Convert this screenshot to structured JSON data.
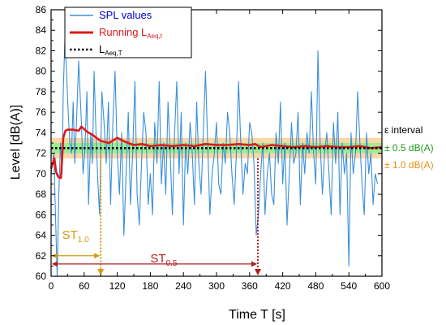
{
  "chart_data": {
    "type": "line",
    "xlabel": "Time T [s]",
    "ylabel": "Level [dB(A)]",
    "xlim": [
      0,
      600
    ],
    "ylim": [
      60,
      86
    ],
    "xticks": [
      0,
      60,
      120,
      180,
      240,
      300,
      360,
      420,
      480,
      540,
      600
    ],
    "yticks": [
      60,
      62,
      64,
      66,
      68,
      70,
      72,
      74,
      76,
      78,
      80,
      82,
      84,
      86
    ],
    "grid": false,
    "legend_position": "top-left",
    "legend": {
      "spl": "SPL values",
      "running_main": "Running L",
      "running_sub": "Aeq,t",
      "laeq_main": "L",
      "laeq_sub": "Aeq,T"
    },
    "colors": {
      "spl": "#3a8fd9",
      "running": "#e01818",
      "laeq": "#000000",
      "band_05": "#8df08d",
      "band_10": "#f7c98a",
      "eps_05_text": "#1f9a1f",
      "eps_10_text": "#e09418",
      "st10": "#d69a12",
      "st05": "#b02020"
    },
    "series": [
      {
        "name": "SPL values",
        "x": [
          0,
          5,
          8,
          11,
          14,
          17,
          20,
          22,
          25,
          28,
          31,
          34,
          37,
          40,
          43,
          46,
          50,
          55,
          58,
          61,
          65,
          68,
          72,
          75,
          78,
          82,
          85,
          88,
          92,
          96,
          100,
          104,
          108,
          112,
          116,
          120,
          124,
          128,
          132,
          136,
          140,
          144,
          148,
          152,
          156,
          160,
          164,
          168,
          172,
          176,
          180,
          184,
          188,
          192,
          196,
          200,
          204,
          208,
          212,
          216,
          220,
          224,
          228,
          232,
          236,
          240,
          244,
          248,
          252,
          256,
          260,
          264,
          268,
          272,
          276,
          280,
          284,
          288,
          292,
          296,
          300,
          304,
          308,
          312,
          316,
          320,
          324,
          328,
          332,
          336,
          340,
          344,
          348,
          352,
          356,
          360,
          364,
          368,
          372,
          376,
          380,
          384,
          388,
          392,
          396,
          400,
          404,
          408,
          412,
          416,
          420,
          424,
          428,
          432,
          436,
          440,
          444,
          448,
          452,
          456,
          460,
          464,
          468,
          472,
          476,
          480,
          484,
          488,
          492,
          496,
          500,
          504,
          508,
          512,
          516,
          520,
          524,
          528,
          532,
          536,
          540,
          544,
          548,
          552,
          556,
          560,
          564,
          568,
          572,
          576,
          580,
          584,
          588,
          592
        ],
        "values": [
          70,
          72,
          66,
          60,
          68,
          73,
          70,
          78,
          83,
          80,
          76,
          73,
          72,
          77,
          71,
          75,
          81,
          75,
          70,
          72,
          78,
          67,
          74,
          71,
          80,
          73,
          69,
          66,
          78,
          75,
          71,
          77,
          67,
          75,
          80,
          72,
          68,
          74,
          64,
          70,
          76,
          67,
          72,
          79,
          68,
          65,
          71,
          76,
          74,
          67,
          70,
          66,
          75,
          71,
          79,
          69,
          73,
          68,
          77,
          72,
          66,
          74,
          79,
          70,
          76,
          65,
          73,
          70,
          75,
          72,
          67,
          77,
          71,
          68,
          74,
          80,
          73,
          66,
          70,
          72,
          75,
          69,
          68,
          73,
          71,
          76,
          74,
          70,
          67,
          72,
          79,
          73,
          68,
          71,
          70,
          75,
          74,
          71,
          64,
          66,
          70,
          73,
          66,
          70,
          72,
          68,
          67,
          74,
          71,
          77,
          69,
          73,
          65,
          70,
          75,
          71,
          72,
          76,
          67,
          73,
          70,
          74,
          72,
          78,
          72,
          69,
          82,
          73,
          68,
          72,
          74,
          70,
          66,
          75,
          71,
          76,
          66,
          73,
          70,
          72,
          61,
          74,
          70,
          72,
          78,
          73,
          69,
          66,
          74,
          70,
          72,
          67,
          70,
          69
        ]
      },
      {
        "name": "Running L Aeq,t",
        "x": [
          0,
          3,
          6,
          9,
          12,
          15,
          18,
          22,
          26,
          30,
          40,
          50,
          55,
          65,
          75,
          90,
          105,
          120,
          135,
          150,
          165,
          180,
          200,
          220,
          240,
          260,
          280,
          300,
          320,
          340,
          360,
          370,
          380,
          400,
          420,
          440,
          460,
          480,
          500,
          520,
          540,
          560,
          580,
          600
        ],
        "values": [
          70.5,
          71.0,
          71.5,
          70.2,
          69.8,
          69.6,
          69.6,
          73.5,
          74.2,
          74.3,
          74.3,
          74.2,
          74.6,
          74.1,
          73.8,
          73.2,
          73.0,
          73.5,
          73.1,
          72.8,
          72.9,
          72.7,
          72.8,
          72.7,
          72.8,
          72.7,
          72.9,
          72.8,
          72.8,
          72.9,
          72.8,
          72.9,
          72.6,
          72.8,
          72.7,
          72.6,
          72.7,
          72.6,
          72.7,
          72.6,
          72.6,
          72.7,
          72.5,
          72.6
        ]
      },
      {
        "name": "L Aeq,T",
        "x": [
          0,
          600
        ],
        "values": [
          72.5,
          72.5
        ]
      }
    ],
    "bands": {
      "center": 72.5,
      "inner_halfwidth": 0.5,
      "outer_halfwidth": 1.0
    },
    "band_labels": {
      "title": "ε interval",
      "inner": "± 0.5 dB(A)",
      "outer": "± 1.0 dB(A)"
    },
    "markers": [
      {
        "label_main": "ST",
        "label_sub": "1.0",
        "x": 90,
        "y_top": 72,
        "y_arrow": 62,
        "key": "st10",
        "label_x": 20,
        "label_y": 63.5
      },
      {
        "label_main": "ST",
        "label_sub": "0.5",
        "x": 375,
        "y_top": 71.5,
        "y_arrow": 61.2,
        "key": "st05",
        "label_x": 180,
        "label_y": 61.2
      }
    ]
  }
}
